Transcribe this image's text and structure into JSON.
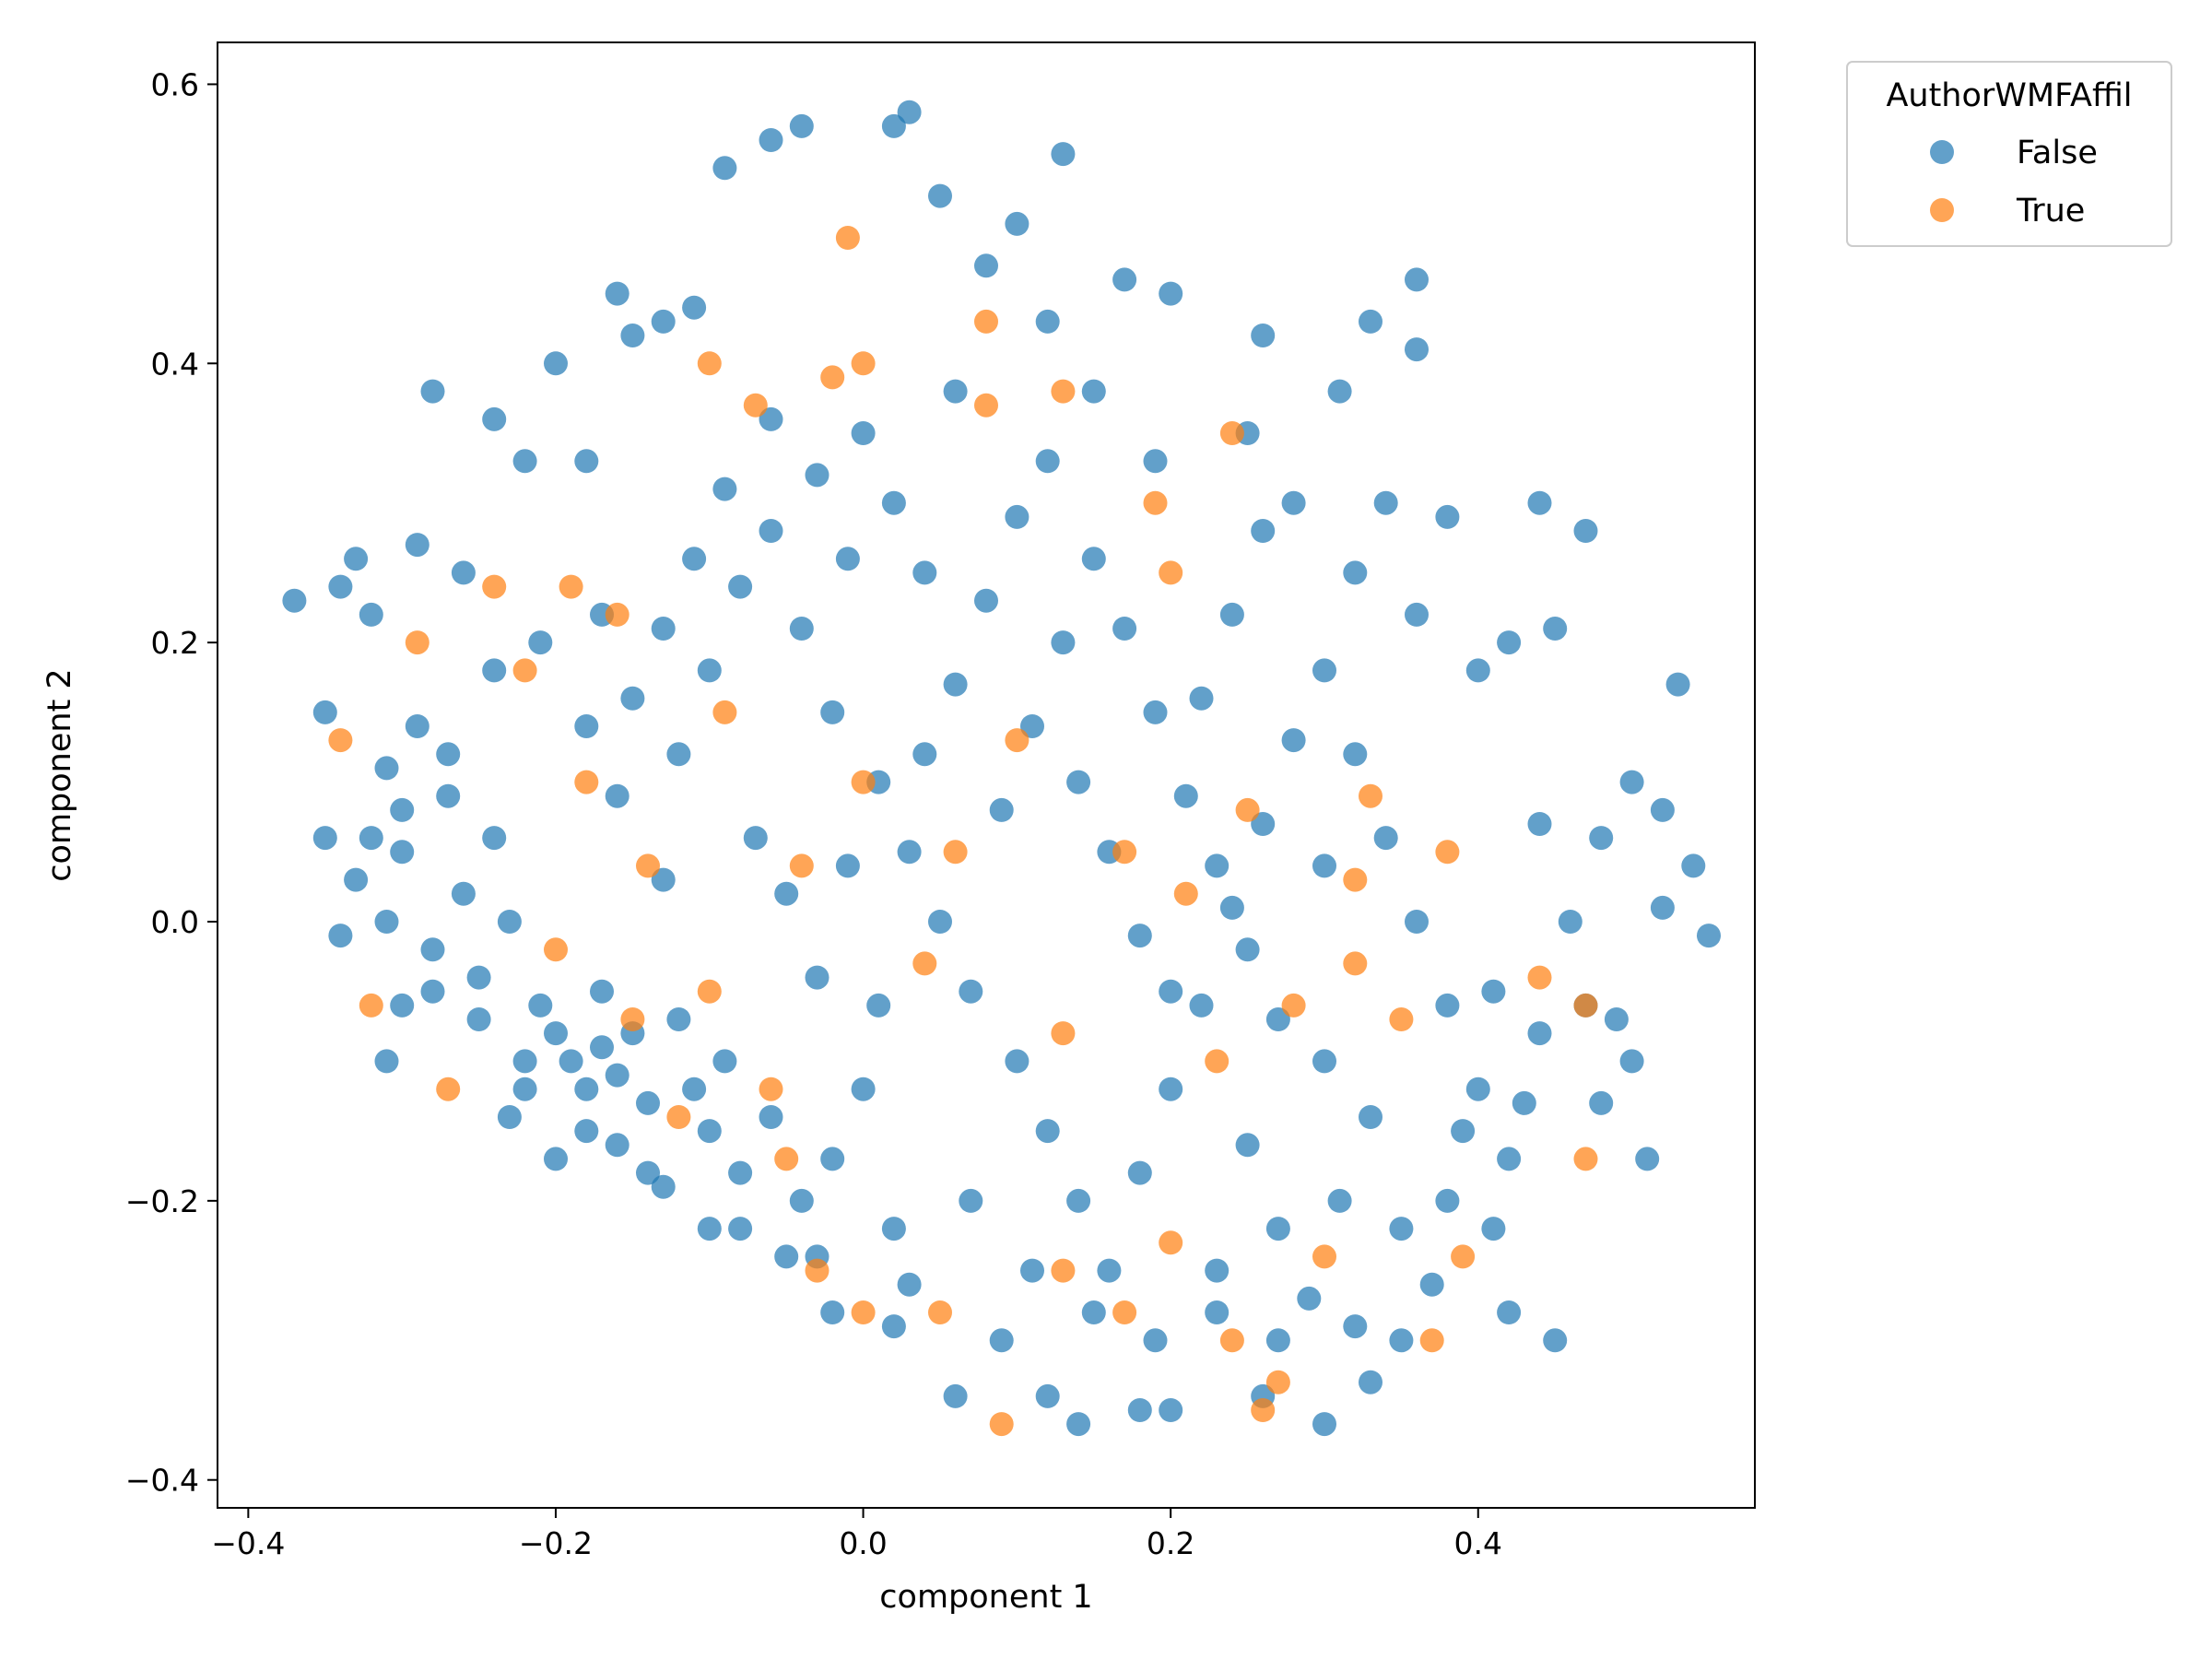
{
  "chart_data": {
    "type": "scatter",
    "title": "",
    "xlabel": "component 1",
    "ylabel": "component 2",
    "xlim": [
      -0.42,
      0.58
    ],
    "ylim": [
      -0.42,
      0.63
    ],
    "xticks": [
      -0.4,
      -0.2,
      0.0,
      0.2,
      0.4
    ],
    "yticks": [
      -0.4,
      -0.2,
      0.0,
      0.2,
      0.4,
      0.6
    ],
    "xtick_labels": [
      "−0.4",
      "−0.2",
      "0.0",
      "0.2",
      "0.4"
    ],
    "ytick_labels": [
      "−0.4",
      "−0.2",
      "0.0",
      "0.2",
      "0.4",
      "0.6"
    ],
    "grid": false,
    "legend": {
      "title": "AuthorWMFAffil",
      "placement": "outside-top-right",
      "entries": [
        "False",
        "True"
      ]
    },
    "series": [
      {
        "name": "False",
        "color": "#1f77b4",
        "alpha": 0.7,
        "points": [
          [
            -0.37,
            0.23
          ],
          [
            -0.35,
            0.15
          ],
          [
            -0.34,
            0.24
          ],
          [
            -0.33,
            0.26
          ],
          [
            -0.32,
            0.22
          ],
          [
            -0.31,
            0.11
          ],
          [
            -0.3,
            0.05
          ],
          [
            -0.29,
            0.27
          ],
          [
            -0.28,
            0.38
          ],
          [
            -0.26,
            0.25
          ],
          [
            -0.24,
            0.36
          ],
          [
            -0.22,
            0.33
          ],
          [
            -0.2,
            0.4
          ],
          [
            -0.18,
            0.33
          ],
          [
            -0.16,
            0.45
          ],
          [
            -0.15,
            0.42
          ],
          [
            -0.13,
            0.43
          ],
          [
            -0.11,
            0.44
          ],
          [
            -0.09,
            0.54
          ],
          [
            -0.06,
            0.56
          ],
          [
            -0.04,
            0.57
          ],
          [
            0.02,
            0.57
          ],
          [
            0.03,
            0.58
          ],
          [
            0.05,
            0.52
          ],
          [
            0.13,
            0.55
          ],
          [
            0.1,
            0.5
          ],
          [
            0.08,
            0.47
          ],
          [
            0.17,
            0.46
          ],
          [
            0.2,
            0.45
          ],
          [
            0.26,
            0.42
          ],
          [
            0.33,
            0.43
          ],
          [
            0.36,
            0.46
          ],
          [
            0.36,
            0.41
          ],
          [
            0.31,
            0.38
          ],
          [
            0.25,
            0.35
          ],
          [
            0.19,
            0.33
          ],
          [
            0.15,
            0.38
          ],
          [
            0.12,
            0.43
          ],
          [
            0.06,
            0.38
          ],
          [
            0.0,
            0.35
          ],
          [
            0.34,
            0.3
          ],
          [
            0.38,
            0.29
          ],
          [
            0.44,
            0.3
          ],
          [
            0.47,
            0.28
          ],
          [
            0.36,
            0.22
          ],
          [
            0.42,
            0.2
          ],
          [
            0.45,
            0.21
          ],
          [
            0.4,
            0.18
          ],
          [
            0.5,
            0.1
          ],
          [
            0.52,
            0.08
          ],
          [
            0.53,
            0.17
          ],
          [
            0.54,
            0.04
          ],
          [
            0.55,
            -0.01
          ],
          [
            0.52,
            0.01
          ],
          [
            0.49,
            -0.07
          ],
          [
            0.5,
            -0.1
          ],
          [
            0.48,
            -0.13
          ],
          [
            0.51,
            -0.17
          ],
          [
            0.45,
            -0.3
          ],
          [
            0.42,
            -0.28
          ],
          [
            0.33,
            -0.33
          ],
          [
            0.3,
            -0.36
          ],
          [
            0.26,
            -0.34
          ],
          [
            0.23,
            -0.28
          ],
          [
            0.2,
            -0.35
          ],
          [
            0.18,
            -0.35
          ],
          [
            0.14,
            -0.36
          ],
          [
            0.12,
            -0.34
          ],
          [
            0.09,
            -0.3
          ],
          [
            0.06,
            -0.34
          ],
          [
            0.02,
            -0.29
          ],
          [
            -0.02,
            -0.28
          ],
          [
            -0.05,
            -0.24
          ],
          [
            -0.1,
            -0.22
          ],
          [
            -0.14,
            -0.18
          ],
          [
            -0.18,
            -0.15
          ],
          [
            -0.22,
            -0.1
          ],
          [
            -0.25,
            -0.07
          ],
          [
            -0.28,
            -0.05
          ],
          [
            -0.31,
            -0.1
          ],
          [
            -0.34,
            -0.01
          ],
          [
            -0.35,
            0.06
          ],
          [
            -0.33,
            0.03
          ],
          [
            -0.3,
            0.08
          ],
          [
            -0.27,
            0.12
          ],
          [
            -0.24,
            0.18
          ],
          [
            -0.21,
            0.2
          ],
          [
            -0.18,
            0.14
          ],
          [
            -0.16,
            0.09
          ],
          [
            -0.13,
            0.03
          ],
          [
            -0.2,
            -0.08
          ],
          [
            -0.19,
            -0.1
          ],
          [
            -0.18,
            -0.12
          ],
          [
            -0.17,
            -0.09
          ],
          [
            -0.16,
            -0.11
          ],
          [
            -0.15,
            -0.08
          ],
          [
            -0.14,
            -0.13
          ],
          [
            -0.21,
            -0.06
          ],
          [
            -0.22,
            -0.12
          ],
          [
            -0.17,
            -0.05
          ],
          [
            -0.12,
            -0.07
          ],
          [
            -0.11,
            -0.12
          ],
          [
            -0.1,
            -0.15
          ],
          [
            -0.09,
            -0.1
          ],
          [
            -0.08,
            -0.18
          ],
          [
            -0.06,
            -0.14
          ],
          [
            -0.04,
            -0.2
          ],
          [
            -0.02,
            -0.17
          ],
          [
            0.0,
            -0.12
          ],
          [
            0.02,
            -0.22
          ],
          [
            -0.12,
            0.12
          ],
          [
            -0.1,
            0.18
          ],
          [
            -0.08,
            0.24
          ],
          [
            -0.06,
            0.28
          ],
          [
            -0.04,
            0.21
          ],
          [
            -0.02,
            0.15
          ],
          [
            0.01,
            0.1
          ],
          [
            0.03,
            0.05
          ],
          [
            0.05,
            0.0
          ],
          [
            0.07,
            -0.05
          ],
          [
            0.09,
            0.08
          ],
          [
            0.11,
            0.14
          ],
          [
            0.13,
            0.2
          ],
          [
            0.15,
            0.26
          ],
          [
            0.17,
            0.21
          ],
          [
            0.19,
            0.15
          ],
          [
            0.21,
            0.09
          ],
          [
            0.23,
            0.04
          ],
          [
            0.25,
            -0.02
          ],
          [
            0.27,
            -0.07
          ],
          [
            0.1,
            -0.1
          ],
          [
            0.12,
            -0.15
          ],
          [
            0.14,
            -0.2
          ],
          [
            0.16,
            -0.25
          ],
          [
            0.18,
            -0.18
          ],
          [
            0.2,
            -0.12
          ],
          [
            0.22,
            -0.06
          ],
          [
            0.24,
            0.01
          ],
          [
            0.26,
            0.07
          ],
          [
            0.28,
            0.13
          ],
          [
            0.3,
            0.18
          ],
          [
            0.32,
            0.12
          ],
          [
            0.34,
            0.06
          ],
          [
            0.36,
            0.0
          ],
          [
            0.38,
            -0.06
          ],
          [
            0.4,
            -0.12
          ],
          [
            0.42,
            -0.17
          ],
          [
            0.44,
            -0.08
          ],
          [
            0.46,
            0.0
          ],
          [
            0.44,
            0.07
          ],
          [
            0.3,
            -0.1
          ],
          [
            0.31,
            -0.2
          ],
          [
            0.29,
            -0.27
          ],
          [
            0.27,
            -0.22
          ],
          [
            0.25,
            -0.16
          ],
          [
            0.33,
            -0.14
          ],
          [
            0.35,
            -0.22
          ],
          [
            0.37,
            -0.26
          ],
          [
            0.39,
            -0.15
          ],
          [
            0.41,
            -0.05
          ],
          [
            -0.26,
            0.02
          ],
          [
            -0.28,
            -0.02
          ],
          [
            -0.3,
            -0.06
          ],
          [
            -0.24,
            0.06
          ],
          [
            -0.25,
            -0.04
          ],
          [
            -0.23,
            0.0
          ],
          [
            -0.27,
            0.09
          ],
          [
            -0.29,
            0.14
          ],
          [
            -0.32,
            0.06
          ],
          [
            -0.31,
            0.0
          ],
          [
            -0.07,
            0.06
          ],
          [
            -0.05,
            0.02
          ],
          [
            -0.03,
            -0.04
          ],
          [
            -0.01,
            0.04
          ],
          [
            0.01,
            -0.06
          ],
          [
            0.04,
            0.12
          ],
          [
            0.06,
            0.17
          ],
          [
            0.08,
            0.23
          ],
          [
            0.1,
            0.29
          ],
          [
            0.12,
            0.33
          ],
          [
            0.02,
            0.3
          ],
          [
            0.04,
            0.25
          ],
          [
            -0.01,
            0.26
          ],
          [
            -0.03,
            0.32
          ],
          [
            -0.06,
            0.36
          ],
          [
            -0.09,
            0.31
          ],
          [
            -0.11,
            0.26
          ],
          [
            -0.13,
            0.21
          ],
          [
            -0.15,
            0.16
          ],
          [
            -0.17,
            0.22
          ],
          [
            0.14,
            0.1
          ],
          [
            0.16,
            0.05
          ],
          [
            0.18,
            -0.01
          ],
          [
            0.2,
            -0.05
          ],
          [
            0.22,
            0.16
          ],
          [
            0.24,
            0.22
          ],
          [
            0.26,
            0.28
          ],
          [
            0.28,
            0.3
          ],
          [
            0.32,
            0.25
          ],
          [
            0.3,
            0.04
          ],
          [
            -0.23,
            -0.14
          ],
          [
            -0.2,
            -0.17
          ],
          [
            -0.16,
            -0.16
          ],
          [
            -0.13,
            -0.19
          ],
          [
            -0.08,
            -0.22
          ],
          [
            -0.03,
            -0.24
          ],
          [
            0.03,
            -0.26
          ],
          [
            0.07,
            -0.2
          ],
          [
            0.11,
            -0.25
          ],
          [
            0.15,
            -0.28
          ],
          [
            0.19,
            -0.3
          ],
          [
            0.23,
            -0.25
          ],
          [
            0.27,
            -0.3
          ],
          [
            0.32,
            -0.29
          ],
          [
            0.35,
            -0.3
          ],
          [
            0.38,
            -0.2
          ],
          [
            0.41,
            -0.22
          ],
          [
            0.43,
            -0.13
          ],
          [
            0.47,
            -0.06
          ],
          [
            0.48,
            0.06
          ]
        ]
      },
      {
        "name": "True",
        "color": "#ff7f0e",
        "alpha": 0.7,
        "points": [
          [
            -0.34,
            0.13
          ],
          [
            -0.27,
            -0.12
          ],
          [
            -0.32,
            -0.06
          ],
          [
            -0.29,
            0.2
          ],
          [
            -0.24,
            0.24
          ],
          [
            -0.22,
            0.18
          ],
          [
            -0.19,
            0.24
          ],
          [
            -0.16,
            0.22
          ],
          [
            -0.1,
            0.4
          ],
          [
            -0.07,
            0.37
          ],
          [
            -0.02,
            0.39
          ],
          [
            0.0,
            0.4
          ],
          [
            -0.01,
            0.49
          ],
          [
            0.08,
            0.43
          ],
          [
            0.08,
            0.37
          ],
          [
            0.13,
            0.38
          ],
          [
            0.19,
            0.3
          ],
          [
            0.2,
            0.25
          ],
          [
            0.24,
            0.35
          ],
          [
            0.33,
            0.09
          ],
          [
            0.38,
            0.05
          ],
          [
            0.44,
            -0.04
          ],
          [
            0.47,
            -0.06
          ],
          [
            0.47,
            -0.17
          ],
          [
            0.39,
            -0.24
          ],
          [
            0.37,
            -0.3
          ],
          [
            0.3,
            -0.24
          ],
          [
            0.27,
            -0.33
          ],
          [
            0.26,
            -0.35
          ],
          [
            0.24,
            -0.3
          ],
          [
            0.2,
            -0.23
          ],
          [
            0.17,
            -0.28
          ],
          [
            0.13,
            -0.25
          ],
          [
            0.09,
            -0.36
          ],
          [
            0.05,
            -0.28
          ],
          [
            0.0,
            -0.28
          ],
          [
            -0.03,
            -0.25
          ],
          [
            -0.05,
            -0.17
          ],
          [
            -0.1,
            -0.05
          ],
          [
            -0.14,
            0.04
          ],
          [
            -0.2,
            -0.02
          ],
          [
            -0.18,
            0.1
          ],
          [
            -0.09,
            0.15
          ],
          [
            -0.04,
            0.04
          ],
          [
            0.0,
            0.1
          ],
          [
            0.04,
            -0.03
          ],
          [
            0.06,
            0.05
          ],
          [
            0.1,
            0.13
          ],
          [
            0.13,
            -0.08
          ],
          [
            0.17,
            0.05
          ],
          [
            0.21,
            0.02
          ],
          [
            0.23,
            -0.1
          ],
          [
            0.25,
            0.08
          ],
          [
            0.28,
            -0.06
          ],
          [
            0.32,
            -0.03
          ],
          [
            0.35,
            -0.07
          ],
          [
            0.32,
            0.03
          ],
          [
            -0.15,
            -0.07
          ],
          [
            -0.12,
            -0.14
          ],
          [
            -0.06,
            -0.12
          ]
        ]
      }
    ]
  }
}
